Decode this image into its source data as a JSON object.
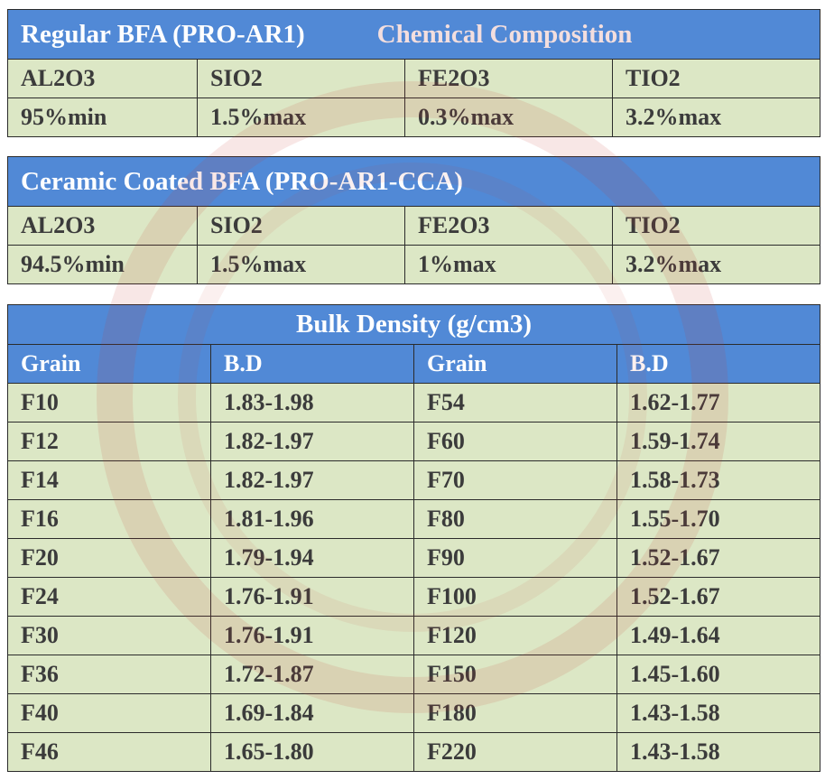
{
  "regular": {
    "title": "Regular BFA (PRO-AR1)",
    "subtitle": "Chemical Composition",
    "header": [
      "AL2O3",
      "SIO2",
      "FE2O3",
      "TIO2"
    ],
    "rows": [
      [
        "95%min",
        "1.5%max",
        "0.3%max",
        "3.2%max"
      ]
    ]
  },
  "coated": {
    "title": "Ceramic Coated BFA (PRO-AR1-CCA)",
    "header": [
      "AL2O3",
      "SIO2",
      "FE2O3",
      "TIO2"
    ],
    "rows": [
      [
        "94.5%min",
        "1.5%max",
        "1%max",
        "3.2%max"
      ]
    ]
  },
  "density": {
    "title": "Bulk Density (g/cm3)",
    "header": [
      "Grain",
      "B.D",
      "Grain",
      "B.D"
    ],
    "rows": [
      [
        "F10",
        "1.83-1.98",
        "F54",
        "1.62-1.77"
      ],
      [
        "F12",
        "1.82-1.97",
        "F60",
        "1.59-1.74"
      ],
      [
        "F14",
        "1.82-1.97",
        "F70",
        "1.58-1.73"
      ],
      [
        "F16",
        "1.81-1.96",
        "F80",
        "1.55-1.70"
      ],
      [
        "F20",
        "1.79-1.94",
        "F90",
        "1.52-1.67"
      ],
      [
        "F24",
        "1.76-1.91",
        "F100",
        "1.52-1.67"
      ],
      [
        "F30",
        "1.76-1.91",
        "F120",
        "1.49-1.64"
      ],
      [
        "F36",
        "1.72-1.87",
        "F150",
        "1.45-1.60"
      ],
      [
        "F40",
        "1.69-1.84",
        "F180",
        "1.43-1.58"
      ],
      [
        "F46",
        "1.65-1.80",
        "F220",
        "1.43-1.58"
      ]
    ]
  }
}
